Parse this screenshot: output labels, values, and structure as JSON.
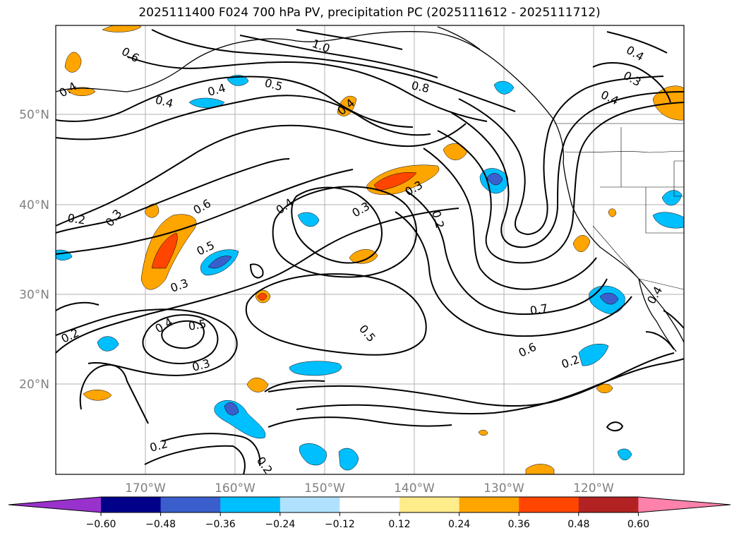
{
  "title": "2025111400 F024 700 hPa PV, precipitation PC (2025111612 - 2025111712)",
  "map": {
    "lon_labels": [
      "170°W",
      "160°W",
      "150°W",
      "140°W",
      "130°W",
      "120°W"
    ],
    "lat_labels": [
      "50°N",
      "40°N",
      "30°N",
      "20°N"
    ],
    "contour_labels": [
      "1.0",
      "0.6",
      "0.4",
      "0.5",
      "0.4",
      "0.8",
      "0.4",
      "0.4",
      "0.3",
      "0.4",
      "0.2",
      "0.3",
      "0.6",
      "0.4",
      "0.3",
      "0.3",
      "0.2",
      "0.5",
      "0.3",
      "0.7",
      "0.6",
      "0.2",
      "0.2",
      "0.4",
      "0.5",
      "0.5",
      "0.3",
      "0.2",
      "0.2",
      "0.4",
      "0.4"
    ]
  },
  "colorbar": {
    "ticks": [
      "−0.60",
      "−0.48",
      "−0.36",
      "−0.24",
      "−0.12",
      "0.12",
      "0.24",
      "0.36",
      "0.48",
      "0.60"
    ],
    "colors": [
      "#9932cc",
      "#00008b",
      "#3a5fcd",
      "#00bfff",
      "#b0e2ff",
      "#ffffff",
      "#ffec8b",
      "#ffa500",
      "#ff4500",
      "#b22222",
      "#ff82ab"
    ]
  }
}
